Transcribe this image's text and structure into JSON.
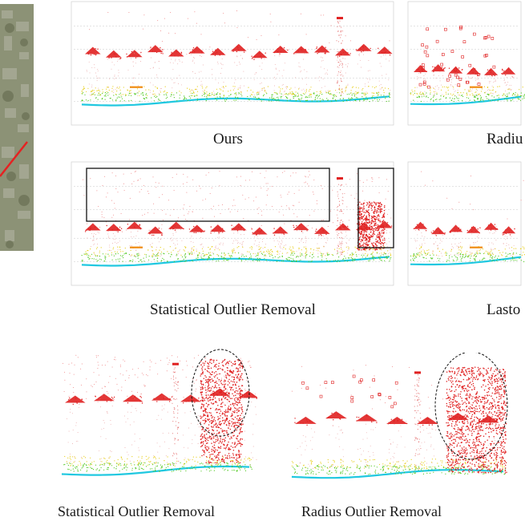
{
  "figure": {
    "captions": {
      "ours": "Ours",
      "radius_top": "Radiu",
      "sor_mid": "Statistical Outlier Removal",
      "lasto_mid": "Lasto",
      "sor_bottom": "Statistical Outlier Removal",
      "ror_bottom": "Radius Outlier Removal"
    },
    "colors": {
      "building": "#e02020",
      "ground_cyan": "#20c8e0",
      "vegetation_green": "#50c820",
      "vegetation_yellow": "#e8d020",
      "orange": "#f08c10",
      "box": "#111111",
      "aerial": "#8c9276",
      "route": "#e52222"
    },
    "icons": {
      "aerial_map": "aerial-map-thumbnail",
      "route_line": "red-route-line"
    }
  }
}
